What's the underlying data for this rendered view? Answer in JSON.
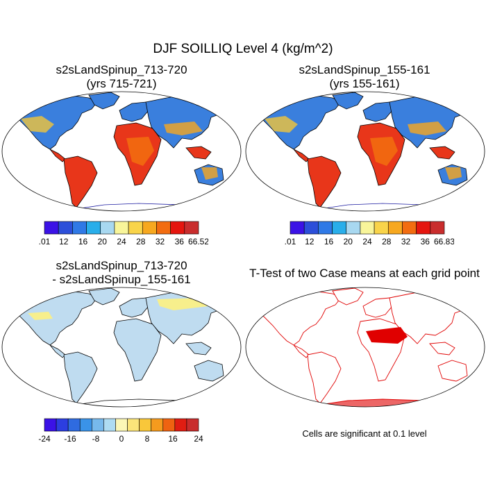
{
  "figure": {
    "title": "DJF SOILLIQ Level 4 (kg/m^2)"
  },
  "panels": {
    "top_left": {
      "title_line1": "s2sLandSpinup_713-720",
      "title_line2": "(yrs 715-721)"
    },
    "top_right": {
      "title_line1": "s2sLandSpinup_155-161",
      "title_line2": "(yrs 155-161)"
    },
    "bottom_left": {
      "title_line1": "s2sLandSpinup_713-720",
      "title_line2": "- s2sLandSpinup_155-161"
    },
    "bottom_right": {
      "title": "T-Test of two Case means at each grid point",
      "note": "Cells are significant at 0.1 level"
    }
  },
  "colorbars": {
    "cbar1": {
      "colors": [
        "#3b12e6",
        "#2c4fd9",
        "#2f79e6",
        "#29aeea",
        "#a8d8f0",
        "#f8f59a",
        "#f9d44a",
        "#f7a81f",
        "#f26c10",
        "#e5160f",
        "#c92d2d"
      ],
      "labels": [
        ".01",
        "12",
        "16",
        "20",
        "24",
        "28",
        "32",
        "36",
        "66.52"
      ]
    },
    "cbar2": {
      "colors": [
        "#3b12e6",
        "#2c4fd9",
        "#2f79e6",
        "#29aeea",
        "#a8d8f0",
        "#f8f59a",
        "#f9d44a",
        "#f7a81f",
        "#f26c10",
        "#e5160f",
        "#c92d2d"
      ],
      "labels": [
        ".01",
        "12",
        "16",
        "20",
        "24",
        "28",
        "32",
        "36",
        "66.83"
      ]
    },
    "cbar3": {
      "colors": [
        "#3b12e6",
        "#2c3ee0",
        "#2f6be0",
        "#3a93e8",
        "#77b9ec",
        "#aedcf2",
        "#fbf7b6",
        "#fbe57a",
        "#f9c73a",
        "#f59b1e",
        "#ef6311",
        "#e01d12",
        "#c92d2d"
      ],
      "labels": [
        "-24",
        "-16",
        "-8",
        "0",
        "8",
        "16",
        "24"
      ]
    }
  },
  "colors": {
    "wet": "#3a7fdd",
    "dry": "#e8361a",
    "diff_land": "#bfdcf0",
    "diff_pos": "#f7ef8c",
    "signif": "#e00000"
  }
}
